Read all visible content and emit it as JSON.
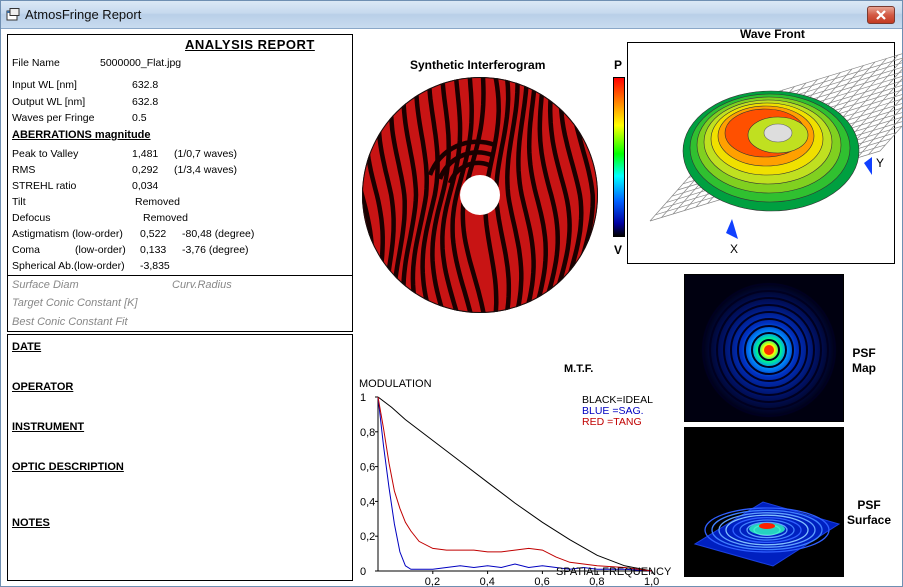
{
  "window": {
    "title": "AtmosFringe  Report"
  },
  "report": {
    "heading": "ANALYSIS  REPORT",
    "file_name_label": "File Name",
    "file_name_value": "5000000_Flat.jpg",
    "input_wl_label": "Input  WL [nm]",
    "input_wl_value": "632.8",
    "output_wl_label": "Output WL [nm]",
    "output_wl_value": "632.8",
    "waves_label": "Waves per Fringe",
    "waves_value": "0.5",
    "aberrations_heading": "ABERRATIONS magnitude",
    "ptv_label": "Peak to Valley",
    "ptv_value": "1,481",
    "ptv_waves": "(1/0,7 waves)",
    "rms_label": "RMS",
    "rms_value": "0,292",
    "rms_waves": "(1/3,4 waves)",
    "strehl_label": "STREHL ratio",
    "strehl_value": "0,034",
    "tilt_label": "Tilt",
    "tilt_value": "Removed",
    "defocus_label": "Defocus",
    "defocus_value": "Removed",
    "astig_label": "Astigmatism  (low-order)",
    "astig_value": "0,522",
    "astig_deg": "-80,48  (degree)",
    "coma_label": "Coma",
    "coma_order": "(low-order)",
    "coma_value": "0,133",
    "coma_deg": "-3,76  (degree)",
    "spherical_label": "Spherical Ab.(low-order)",
    "spherical_value": "-3,835",
    "surface_diam": "Surface Diam",
    "curv_radius": "Curv.Radius",
    "target_conic": "Target Conic Constant [K]",
    "best_conic": "Best Conic Constant Fit"
  },
  "notes": {
    "date": "DATE",
    "operator": "OPERATOR",
    "instrument": "INSTRUMENT",
    "optic": "OPTIC DESCRIPTION",
    "notes": "NOTES"
  },
  "interferogram": {
    "title": "Synthetic Interferogram"
  },
  "colorbar": {
    "top": "P",
    "bottom": "V"
  },
  "wavefront": {
    "title": "Wave Front",
    "x_label": "X",
    "y_label": "Y"
  },
  "psf": {
    "map": "PSF\nMap",
    "surface": "PSF\nSurface"
  },
  "chart_data": {
    "type": "line",
    "title": "M.T.F.",
    "ylabel": "MODULATION",
    "xlabel": "SPATIAL FREQUENCY",
    "xlim": [
      0,
      1
    ],
    "ylim": [
      0,
      1
    ],
    "x_ticks": [
      "0,2",
      "0,4",
      "0,6",
      "0,8",
      "1,0"
    ],
    "y_ticks": [
      "0",
      "0,2",
      "0,4",
      "0,6",
      "0,8",
      "1"
    ],
    "legend": [
      "BLACK=IDEAL",
      "BLUE  =SAG.",
      "RED    =TANG"
    ],
    "series": [
      {
        "name": "IDEAL",
        "color": "#000000",
        "x": [
          0,
          0.05,
          0.1,
          0.2,
          0.3,
          0.4,
          0.5,
          0.6,
          0.7,
          0.8,
          0.9,
          1.0
        ],
        "y": [
          1,
          0.94,
          0.87,
          0.75,
          0.63,
          0.51,
          0.39,
          0.28,
          0.18,
          0.09,
          0.03,
          0
        ]
      },
      {
        "name": "SAG.",
        "color": "#0000c0",
        "x": [
          0,
          0.02,
          0.04,
          0.06,
          0.08,
          0.1,
          0.12,
          0.15,
          0.2,
          0.25,
          0.3,
          0.35,
          0.4,
          0.45,
          0.5,
          0.55,
          0.6,
          0.65,
          0.7,
          0.75,
          0.8,
          0.9,
          1.0
        ],
        "y": [
          1,
          0.72,
          0.48,
          0.27,
          0.11,
          0.03,
          0.01,
          0.01,
          0.01,
          0.02,
          0.03,
          0.02,
          0.03,
          0.02,
          0.04,
          0.02,
          0.03,
          0.02,
          0.01,
          0.02,
          0.01,
          0.01,
          0
        ]
      },
      {
        "name": "TANG",
        "color": "#c00000",
        "x": [
          0,
          0.02,
          0.04,
          0.06,
          0.08,
          0.1,
          0.12,
          0.15,
          0.2,
          0.25,
          0.3,
          0.35,
          0.4,
          0.45,
          0.5,
          0.55,
          0.6,
          0.65,
          0.7,
          0.75,
          0.8,
          0.9,
          1.0
        ],
        "y": [
          1,
          0.82,
          0.62,
          0.46,
          0.36,
          0.28,
          0.23,
          0.17,
          0.13,
          0.12,
          0.12,
          0.12,
          0.11,
          0.11,
          0.12,
          0.13,
          0.12,
          0.08,
          0.05,
          0.04,
          0.03,
          0.02,
          0
        ]
      }
    ]
  }
}
